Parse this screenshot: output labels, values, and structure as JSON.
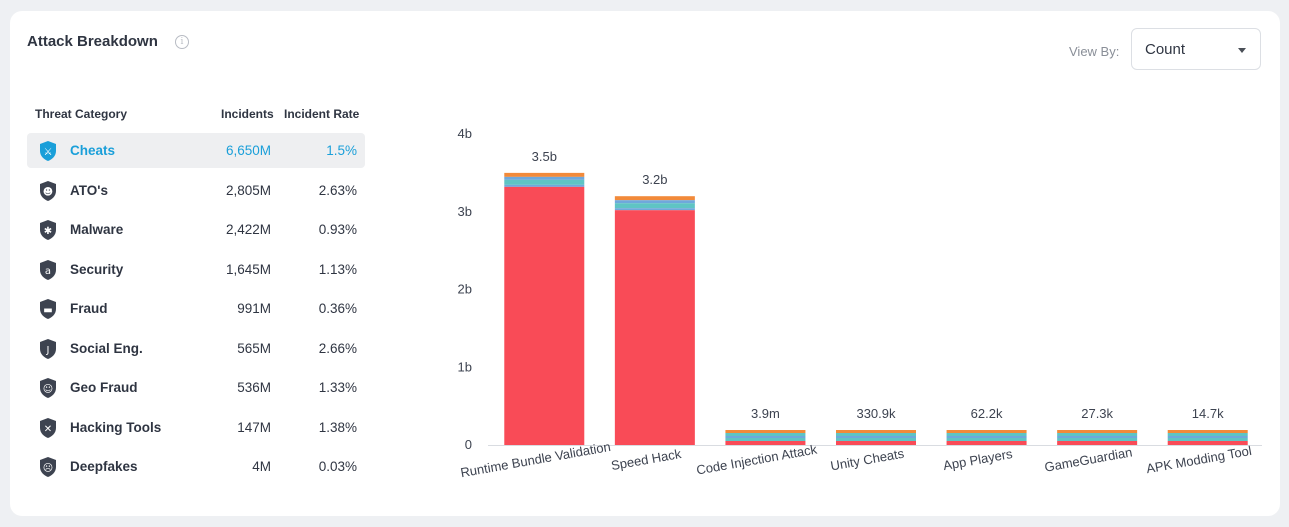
{
  "header": {
    "title": "Attack Breakdown",
    "info_icon": "info-icon"
  },
  "view_by": {
    "label": "View By:",
    "selected": "Count",
    "icon": "chevron-down-icon"
  },
  "table": {
    "headers": {
      "category": "Threat Category",
      "incidents": "Incidents",
      "rate": "Incident Rate"
    },
    "rows": [
      {
        "label": "Cheats",
        "incidents": "6,650M",
        "rate": "1.5%",
        "icon": "sword-shield-icon",
        "selected": true
      },
      {
        "label": "ATO's",
        "incidents": "2,805M",
        "rate": "2.63%",
        "icon": "mask-shield-icon",
        "selected": false
      },
      {
        "label": "Malware",
        "incidents": "2,422M",
        "rate": "0.93%",
        "icon": "bug-shield-icon",
        "selected": false
      },
      {
        "label": "Security",
        "incidents": "1,645M",
        "rate": "1.13%",
        "icon": "at-shield-icon",
        "selected": false
      },
      {
        "label": "Fraud",
        "incidents": "991M",
        "rate": "0.36%",
        "icon": "card-shield-icon",
        "selected": false
      },
      {
        "label": "Social Eng.",
        "incidents": "565M",
        "rate": "2.66%",
        "icon": "hook-shield-icon",
        "selected": false
      },
      {
        "label": "Geo Fraud",
        "incidents": "536M",
        "rate": "1.33%",
        "icon": "globe-shield-icon",
        "selected": false
      },
      {
        "label": "Hacking Tools",
        "incidents": "147M",
        "rate": "1.38%",
        "icon": "tool-shield-icon",
        "selected": false
      },
      {
        "label": "Deepfakes",
        "incidents": "4M",
        "rate": "0.03%",
        "icon": "face-shield-icon",
        "selected": false
      }
    ]
  },
  "colors": {
    "accent": "#1a9fd9",
    "main": "#f94b57",
    "teal": "#5fc4c4",
    "blue": "#6fa8dc",
    "orange": "#f28a3a"
  },
  "chart_data": {
    "type": "bar",
    "stacked": true,
    "categories": [
      "Runtime Bundle Validation",
      "Speed Hack",
      "Code Injection Attack",
      "Unity Cheats",
      "App Players",
      "GameGuardian",
      "APK Modding Tool"
    ],
    "totals": [
      3.5,
      3.2,
      0.0039,
      0.0003309,
      6.22e-05,
      2.73e-05,
      1.47e-05
    ],
    "total_labels": [
      "3.5b",
      "3.2b",
      "3.9m",
      "330.9k",
      "62.2k",
      "27.3k",
      "14.7k"
    ],
    "ylim": [
      0,
      4
    ],
    "yticks": [
      0,
      1,
      2,
      3,
      4
    ],
    "ytick_labels": [
      "0",
      "1b",
      "2b",
      "3b",
      "4b"
    ],
    "grid": true,
    "legend": "none"
  }
}
